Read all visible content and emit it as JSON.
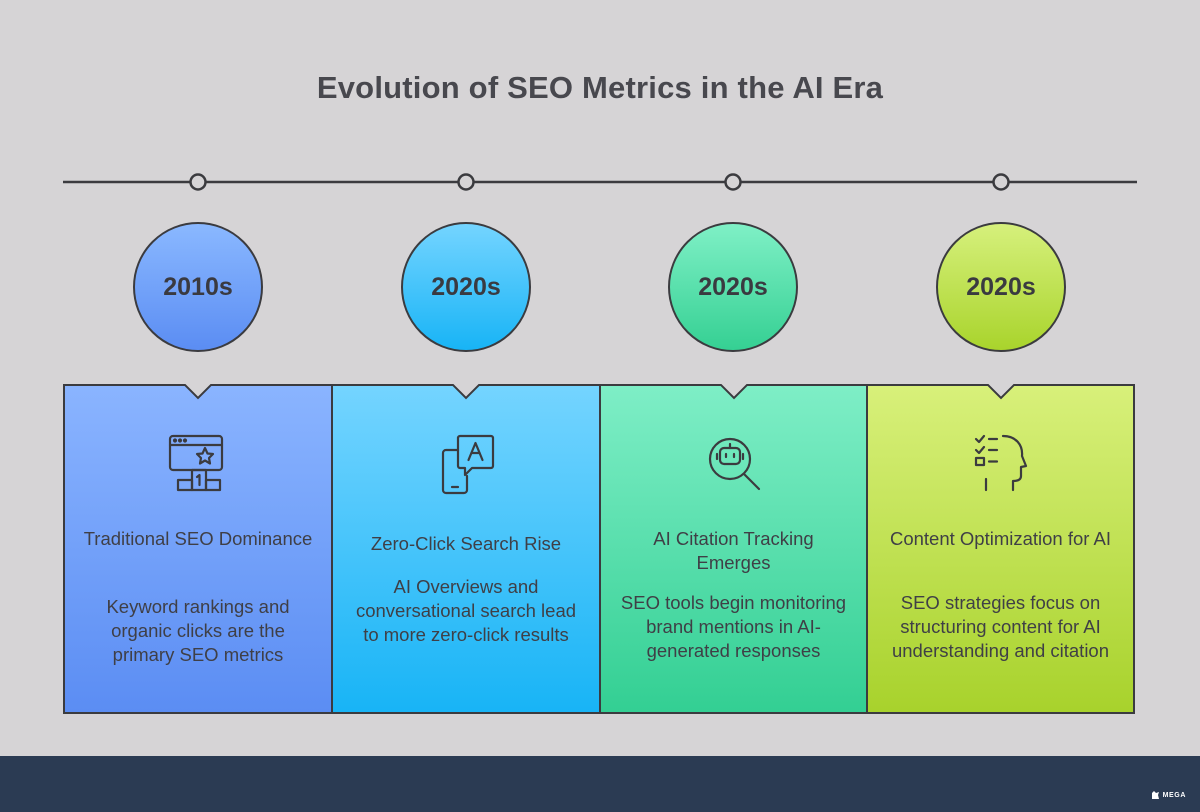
{
  "title": "Evolution of SEO Metrics in the AI Era",
  "stages": [
    {
      "era": "2010s",
      "heading": "Traditional SEO Dominance",
      "description": "Keyword rankings and organic clicks are the primary SEO metrics",
      "icon": "ranking-podium-icon",
      "colors": {
        "circle_top": "#8ab8ff",
        "circle_bottom": "#5b8df3",
        "card_top": "#8ab4ff",
        "card_bottom": "#5b8df3"
      }
    },
    {
      "era": "2020s",
      "heading": "Zero-Click Search Rise",
      "description": "AI Overviews and conversational search lead to more zero-click results",
      "icon": "mobile-chat-icon",
      "colors": {
        "circle_top": "#74d4ff",
        "circle_bottom": "#18b4f6",
        "card_top": "#74d4ff",
        "card_bottom": "#18b4f6"
      }
    },
    {
      "era": "2020s",
      "heading": "AI Citation Tracking Emerges",
      "description": "SEO tools begin monitoring brand mentions in AI-generated responses",
      "icon": "robot-search-icon",
      "colors": {
        "circle_top": "#7ff0c6",
        "circle_bottom": "#35d093",
        "card_top": "#7eeec6",
        "card_bottom": "#33cf93"
      }
    },
    {
      "era": "2020s",
      "heading": "Content Optimization for AI",
      "description": "SEO strategies focus on structuring content for AI understanding and citation",
      "icon": "checklist-head-icon",
      "colors": {
        "circle_top": "#d6f07c",
        "circle_bottom": "#a9d42c",
        "card_top": "#d8f07a",
        "card_bottom": "#a8d22c"
      }
    }
  ],
  "footer": {
    "brand": "MEGA",
    "background": "#2b3b53"
  }
}
